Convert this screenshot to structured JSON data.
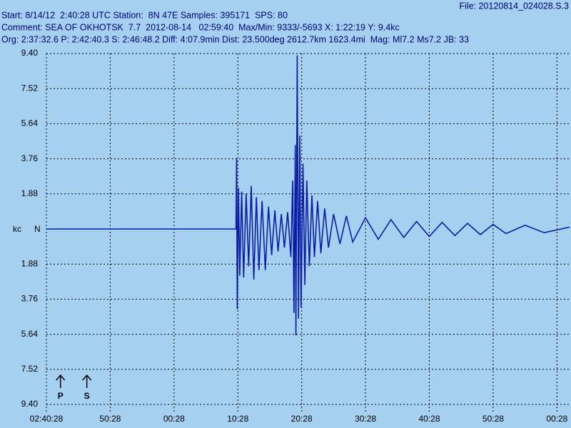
{
  "chart_data": {
    "type": "line",
    "file_label": "File: 20120814_024028.S.3",
    "header_lines": [
      "Start: 8/14/12  2:40:28 UTC Station:  8N 47E Samples: 395171  SPS: 80",
      "Comment: SEA OF OKHOTSK  7.7  2012-08-14   02:59:40  Max/Min: 9333/-5693 X: 1:22:19 Y: 9.4kc",
      "Org: 2:37:32.6 P: 2:42:40.3 S: 2:46:48.2 Diff: 4:07.9min Dist: 23.500deg 2612.7km 1623.4mi  Mag: Ml7.2 Ms7.2 JB: 33"
    ],
    "y_label": "kc",
    "channel": "N",
    "xlim": [
      0,
      82.2
    ],
    "ylim": [
      -9.4,
      9.4
    ],
    "xticks": [
      {
        "value": 0,
        "label": "02:40:28"
      },
      {
        "value": 10,
        "label": "50:28"
      },
      {
        "value": 20,
        "label": "00:28"
      },
      {
        "value": 30,
        "label": "10:28"
      },
      {
        "value": 40,
        "label": "20:28"
      },
      {
        "value": 50,
        "label": "30:28"
      },
      {
        "value": 60,
        "label": "40:28"
      },
      {
        "value": 70,
        "label": "50:28"
      },
      {
        "value": 80,
        "label": "00:28"
      }
    ],
    "yticks": [
      {
        "value": 9.4,
        "label": "9.40"
      },
      {
        "value": 7.52,
        "label": "7.52"
      },
      {
        "value": 5.64,
        "label": "5.64"
      },
      {
        "value": 3.76,
        "label": "3.76"
      },
      {
        "value": 1.88,
        "label": "1.88"
      },
      {
        "value": -1.88,
        "label": "1.88"
      },
      {
        "value": -3.76,
        "label": "3.76"
      },
      {
        "value": -5.64,
        "label": "5.64"
      },
      {
        "value": -7.52,
        "label": "7.52"
      },
      {
        "value": -9.4,
        "label": "9.40"
      }
    ],
    "grid": true,
    "color": "#0c1ca8",
    "x": [
      0,
      29.7,
      29.8,
      29.9,
      30.1,
      30.3,
      30.6,
      30.9,
      31.3,
      31.7,
      32.1,
      32.5,
      32.9,
      33.3,
      33.8,
      34.3,
      34.8,
      35.3,
      35.8,
      36.3,
      36.8,
      37.3,
      37.8,
      38.3,
      38.6,
      38.8,
      39.0,
      39.1,
      39.3,
      39.5,
      39.7,
      39.9,
      40.2,
      40.5,
      40.8,
      41.2,
      41.6,
      42.0,
      42.5,
      43.0,
      43.6,
      44.2,
      45,
      46,
      47,
      48,
      50,
      52,
      54,
      56,
      58,
      60,
      62,
      64,
      66,
      68,
      70,
      72,
      75,
      78,
      82
    ],
    "values": [
      0,
      0,
      3.8,
      -4.3,
      2.2,
      -2.5,
      2.0,
      -2.6,
      1.9,
      -2.0,
      2.3,
      -2.7,
      1.7,
      -2.2,
      1.5,
      -2.2,
      1.2,
      -1.4,
      1.0,
      -1.2,
      0.8,
      -1.0,
      0.9,
      -1.5,
      2.6,
      -4.5,
      4.5,
      -5.7,
      9.3,
      -4.8,
      5.0,
      -4.2,
      3.5,
      -3.0,
      2.6,
      -2.0,
      1.8,
      -1.5,
      1.5,
      -1.3,
      1.1,
      -1.0,
      0.8,
      -0.8,
      0.7,
      -0.7,
      0.6,
      -0.55,
      0.5,
      -0.45,
      0.4,
      -0.4,
      0.35,
      -0.35,
      0.3,
      -0.3,
      0.25,
      -0.25,
      0.2,
      -0.2,
      0.1
    ],
    "annotations": [
      {
        "text": "P",
        "x": 2.205
      },
      {
        "text": "S",
        "x": 6.337
      }
    ]
  }
}
